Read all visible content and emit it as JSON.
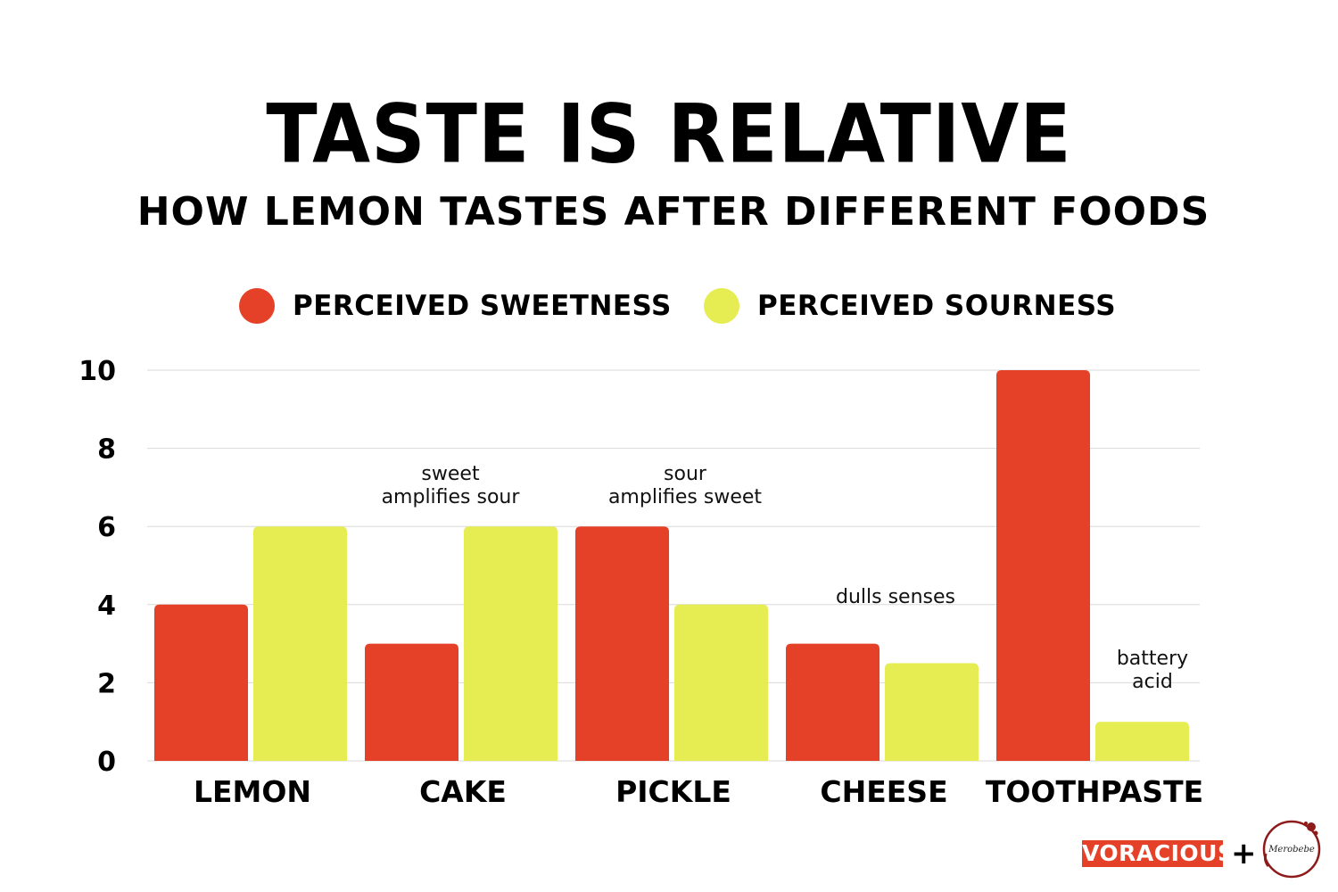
{
  "chart_data": {
    "type": "bar",
    "title": "TASTE IS RELATIVE",
    "subtitle": "HOW LEMON TASTES AFTER DIFFERENT FOODS",
    "categories": [
      "LEMON",
      "CAKE",
      "PICKLE",
      "CHEESE",
      "TOOTHPASTE"
    ],
    "series": [
      {
        "name": "PERCEIVED SWEETNESS",
        "color": "#e54129",
        "values": [
          4,
          3,
          6,
          3,
          10
        ]
      },
      {
        "name": "PERCEIVED SOURNESS",
        "color": "#e6ed52",
        "values": [
          6,
          6,
          4,
          2.5,
          1
        ]
      }
    ],
    "ylim": [
      0,
      10
    ],
    "yticks": [
      "0",
      "2",
      "4",
      "6",
      "8",
      "10"
    ],
    "grid": true,
    "legend": "top-center",
    "annotations": [
      {
        "category": "CAKE",
        "lines": [
          "sweet",
          "amplifies sour"
        ]
      },
      {
        "category": "PICKLE",
        "lines": [
          "sour",
          "amplifies sweet"
        ]
      },
      {
        "category": "CHEESE",
        "lines": [
          "dulls senses"
        ]
      },
      {
        "category": "TOOTHPASTE",
        "lines": [
          "battery",
          "acid"
        ]
      }
    ]
  },
  "logos": {
    "brand": "VORACIOUS",
    "brand_color": "#e54129",
    "plus": "+",
    "seal_text": "Merobebe"
  }
}
